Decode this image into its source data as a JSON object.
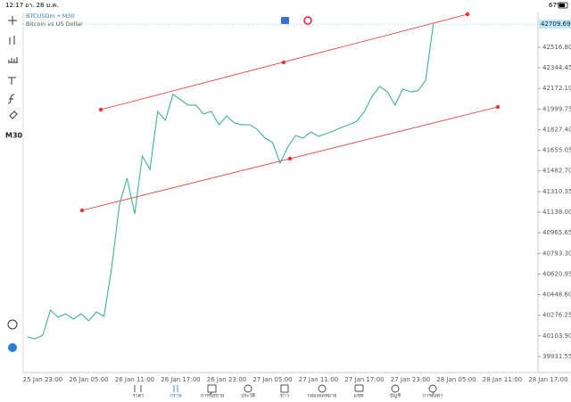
{
  "status_bar": {
    "time": "12:17",
    "date": "อา. 28 ม.ค.",
    "battery": "67%"
  },
  "symbol": {
    "name": "BTCUSDm • M30",
    "description": "Bitcoin vs US Dollar"
  },
  "left_toolbar": {
    "timeframe": "M30"
  },
  "chart_data": {
    "type": "line",
    "categories": [
      null,
      null,
      "25 Jan 23:00",
      null,
      null,
      null,
      null,
      null,
      "26 Jan 05:00",
      null,
      null,
      null,
      null,
      null,
      "26 Jan 11:00",
      null,
      null,
      null,
      null,
      null,
      "26 Jan 17:00",
      null,
      null,
      null,
      null,
      null,
      "26 Jan 23:00",
      null,
      null,
      null,
      null,
      null,
      "27 Jan 05:00",
      null,
      null,
      null,
      null,
      null,
      "27 Jan 11:00",
      null,
      null,
      null,
      null,
      null,
      "27 Jan 17:00",
      null,
      null,
      null,
      null,
      null,
      "27 Jan 23:00",
      null,
      null,
      null,
      null,
      null,
      "28 Jan 05:00",
      null,
      null,
      null,
      null,
      null,
      "28 Jan 11:00",
      null,
      null,
      null,
      null,
      null,
      "28 Jan 17:00"
    ],
    "series": [
      {
        "name": "BTCUSDm",
        "color": "#3fb38c",
        "values": [
          40095,
          40080,
          40110,
          40319,
          40259,
          40289,
          40244,
          40289,
          40229,
          40304,
          40267,
          40676,
          41198,
          41422,
          41124,
          41608,
          41496,
          41980,
          41906,
          42122,
          42077,
          42033,
          42033,
          41958,
          41980,
          41869,
          41943,
          41884,
          41869,
          41869,
          41831,
          41757,
          41720,
          41548,
          41682,
          41779,
          41757,
          41809,
          41772,
          41794,
          41817,
          41846,
          41869,
          41898,
          41980,
          42107,
          42189,
          42144,
          42033,
          42167,
          42144,
          42152,
          42241,
          42709.69,
          null,
          null,
          null,
          null,
          null,
          null,
          null,
          null,
          null,
          null,
          null,
          null,
          null,
          null,
          null
        ]
      }
    ],
    "ylim": [
      39797,
      42807
    ],
    "yticks": [
      {
        "value": 42516.8,
        "label": "42516.80"
      },
      {
        "value": 42344.45,
        "label": "42344.45"
      },
      {
        "value": 42172.1,
        "label": "42172.10"
      },
      {
        "value": 41999.75,
        "label": "41999.75"
      },
      {
        "value": 41827.4,
        "label": "41827.40"
      },
      {
        "value": 41655.05,
        "label": "41655.05"
      },
      {
        "value": 41482.7,
        "label": "41482.70"
      },
      {
        "value": 41310.35,
        "label": "41310.35"
      },
      {
        "value": 41138,
        "label": "41138.00"
      },
      {
        "value": 40965.65,
        "label": "40965.65"
      },
      {
        "value": 40793.3,
        "label": "40793.30"
      },
      {
        "value": 40620.95,
        "label": "40620.95"
      },
      {
        "value": 40448.6,
        "label": "40448.60"
      },
      {
        "value": 40276.25,
        "label": "40276.25"
      },
      {
        "value": 40103.9,
        "label": "40103.90"
      },
      {
        "value": 39931.55,
        "label": "39931.55"
      }
    ],
    "grid": false
  },
  "nav": [
    "ราคา",
    "กราฟ",
    "การซื้อขาย",
    "ประวัติ",
    "ข่าว",
    "กล่องจดหมาย",
    "แชท",
    "บัญชี",
    "การตั้งค่า"
  ]
}
